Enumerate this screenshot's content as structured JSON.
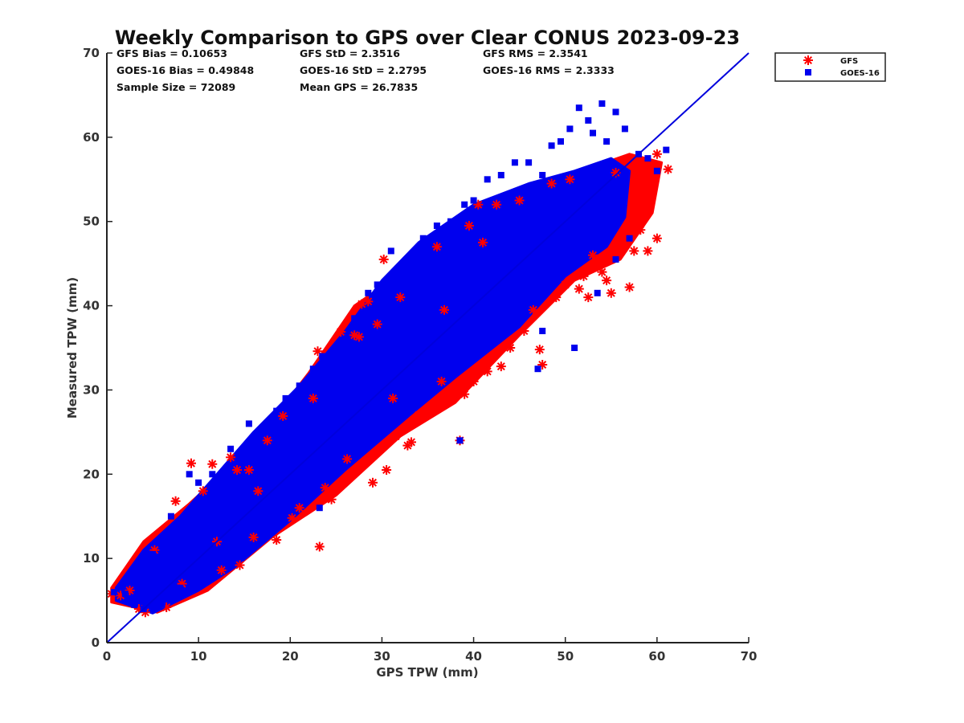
{
  "chart_data": {
    "type": "scatter",
    "title": "Weekly Comparison to GPS over Clear CONUS 2023-09-23",
    "xlabel": "GPS TPW (mm)",
    "ylabel": "Measured TPW (mm)",
    "xlim": [
      0,
      70
    ],
    "ylim": [
      0,
      70
    ],
    "xticks": [
      "0",
      "10",
      "20",
      "30",
      "40",
      "50",
      "60",
      "70"
    ],
    "yticks": [
      "0",
      "10",
      "20",
      "30",
      "40",
      "50",
      "60",
      "70"
    ],
    "reference_line": {
      "name": "1:1 line",
      "from": [
        0,
        0
      ],
      "to": [
        70,
        70
      ],
      "color": "#0000dd"
    },
    "stats": [
      [
        "GFS Bias = 0.10653",
        "GFS StD = 2.3516",
        "GFS RMS = 2.3541"
      ],
      [
        "GOES-16 Bias = 0.49848",
        "GOES-16 StD = 2.2795",
        "GOES-16 RMS = 2.3333"
      ],
      [
        "Sample Size = 72089",
        "Mean GPS = 26.7835",
        ""
      ]
    ],
    "legend_position": "top-right-outside",
    "series": [
      {
        "name": "GFS",
        "marker": "asterisk",
        "color": "#ff0000",
        "points": [
          [
            0.5,
            5.8
          ],
          [
            1.5,
            5.6
          ],
          [
            2.5,
            6.2
          ],
          [
            3.5,
            4.0
          ],
          [
            4.2,
            3.6
          ],
          [
            5.2,
            11.0
          ],
          [
            6.5,
            4.2
          ],
          [
            7.5,
            16.8
          ],
          [
            8.2,
            7.0
          ],
          [
            9.2,
            21.3
          ],
          [
            10.5,
            18.0
          ],
          [
            11.5,
            21.2
          ],
          [
            12.5,
            8.6
          ],
          [
            13.5,
            22.0
          ],
          [
            14.2,
            20.5
          ],
          [
            14.5,
            9.2
          ],
          [
            15.5,
            20.5
          ],
          [
            16.5,
            18.0
          ],
          [
            17.5,
            24.0
          ],
          [
            18.5,
            12.2
          ],
          [
            19.2,
            26.9
          ],
          [
            20.2,
            14.8
          ],
          [
            21.0,
            16.0
          ],
          [
            22.5,
            29.0
          ],
          [
            23.2,
            11.4
          ],
          [
            23.8,
            18.4
          ],
          [
            24.5,
            17.0
          ],
          [
            25.2,
            18.6
          ],
          [
            25.5,
            36.9
          ],
          [
            26.2,
            21.8
          ],
          [
            27.0,
            36.5
          ],
          [
            27.5,
            36.3
          ],
          [
            27.8,
            40.2
          ],
          [
            28.5,
            40.5
          ],
          [
            29.0,
            19.0
          ],
          [
            29.5,
            37.8
          ],
          [
            30.2,
            45.5
          ],
          [
            30.5,
            20.5
          ],
          [
            31.2,
            29.0
          ],
          [
            31.5,
            24.5
          ],
          [
            32.0,
            41.0
          ],
          [
            32.8,
            23.4
          ],
          [
            33.2,
            23.8
          ],
          [
            34.0,
            27.0
          ],
          [
            35.5,
            27.6
          ],
          [
            36.0,
            47.0
          ],
          [
            36.5,
            31.0
          ],
          [
            37.5,
            29.2
          ],
          [
            38.5,
            24.0
          ],
          [
            38.2,
            30.0
          ],
          [
            39.0,
            29.5
          ],
          [
            39.5,
            49.5
          ],
          [
            40.0,
            31.0
          ],
          [
            40.5,
            52.0
          ],
          [
            41.5,
            32.2
          ],
          [
            42.0,
            33.8
          ],
          [
            42.5,
            52.0
          ],
          [
            43.0,
            32.8
          ],
          [
            44.0,
            35.0
          ],
          [
            45.0,
            52.5
          ],
          [
            45.5,
            37.0
          ],
          [
            46.5,
            39.5
          ],
          [
            47.2,
            34.8
          ],
          [
            47.5,
            33.0
          ],
          [
            48.5,
            54.5
          ],
          [
            49.0,
            41.0
          ],
          [
            50.0,
            42.5
          ],
          [
            50.5,
            55.0
          ],
          [
            51.5,
            42.0
          ],
          [
            52.0,
            43.5
          ],
          [
            52.5,
            41.0
          ],
          [
            53.0,
            46.0
          ],
          [
            54.0,
            44.0
          ],
          [
            54.5,
            43.0
          ],
          [
            55.0,
            41.5
          ],
          [
            55.5,
            55.8
          ],
          [
            56.5,
            48.0
          ],
          [
            57.0,
            42.2
          ],
          [
            57.5,
            46.5
          ],
          [
            58.2,
            49.0
          ],
          [
            59.0,
            46.5
          ],
          [
            59.5,
            55.0
          ],
          [
            60.0,
            48.0
          ],
          [
            60.0,
            58.0
          ],
          [
            61.2,
            56.2
          ],
          [
            23.0,
            34.6
          ],
          [
            41.0,
            47.5
          ],
          [
            36.8,
            39.5
          ],
          [
            16.0,
            12.5
          ],
          [
            12.0,
            12.0
          ]
        ]
      },
      {
        "name": "GOES-16",
        "marker": "square",
        "color": "#0000ee",
        "points": [
          [
            0.8,
            6.0
          ],
          [
            2.0,
            5.8
          ],
          [
            3.0,
            4.5
          ],
          [
            4.0,
            4.0
          ],
          [
            5.0,
            10.5
          ],
          [
            6.0,
            4.5
          ],
          [
            7.0,
            15.0
          ],
          [
            8.0,
            6.5
          ],
          [
            9.0,
            20.0
          ],
          [
            10.0,
            19.0
          ],
          [
            11.5,
            20.0
          ],
          [
            12.5,
            10.0
          ],
          [
            13.5,
            23.0
          ],
          [
            15.0,
            19.5
          ],
          [
            15.5,
            26.0
          ],
          [
            17.0,
            21.0
          ],
          [
            18.5,
            27.5
          ],
          [
            19.5,
            29.0
          ],
          [
            21.0,
            30.5
          ],
          [
            22.5,
            32.5
          ],
          [
            23.5,
            34.0
          ],
          [
            23.2,
            16.0
          ],
          [
            24.5,
            33.0
          ],
          [
            25.5,
            35.0
          ],
          [
            27.0,
            38.5
          ],
          [
            28.5,
            41.5
          ],
          [
            29.5,
            42.5
          ],
          [
            31.0,
            46.5
          ],
          [
            32.5,
            44.5
          ],
          [
            34.5,
            48.0
          ],
          [
            36.0,
            49.5
          ],
          [
            37.5,
            50.0
          ],
          [
            38.5,
            24.0
          ],
          [
            39.0,
            52.0
          ],
          [
            40.0,
            52.5
          ],
          [
            41.5,
            55.0
          ],
          [
            43.0,
            55.5
          ],
          [
            44.5,
            57.0
          ],
          [
            46.0,
            57.0
          ],
          [
            47.5,
            55.5
          ],
          [
            48.5,
            59.0
          ],
          [
            49.5,
            59.5
          ],
          [
            50.5,
            61.0
          ],
          [
            51.5,
            63.5
          ],
          [
            52.5,
            62.0
          ],
          [
            53.0,
            60.5
          ],
          [
            54.0,
            64.0
          ],
          [
            54.5,
            59.5
          ],
          [
            55.5,
            63.0
          ],
          [
            56.5,
            55.0
          ],
          [
            57.0,
            48.0
          ],
          [
            58.0,
            58.0
          ],
          [
            59.0,
            57.5
          ],
          [
            60.0,
            56.0
          ],
          [
            61.0,
            58.5
          ],
          [
            47.0,
            32.5
          ],
          [
            47.5,
            37.0
          ],
          [
            51.0,
            35.0
          ],
          [
            55.5,
            45.5
          ],
          [
            53.5,
            41.5
          ],
          [
            56.5,
            61.0
          ],
          [
            44.0,
            53.0
          ],
          [
            38.0,
            45.5
          ],
          [
            34.0,
            44.0
          ],
          [
            30.5,
            35.0
          ],
          [
            26.5,
            27.5
          ],
          [
            21.5,
            28.0
          ],
          [
            14.5,
            14.5
          ]
        ]
      }
    ],
    "clouds": [
      {
        "series": "GFS",
        "polygon": [
          [
            0.5,
            4.8
          ],
          [
            5.5,
            3.6
          ],
          [
            11,
            6.2
          ],
          [
            18,
            12.5
          ],
          [
            25,
            17.5
          ],
          [
            32,
            24.5
          ],
          [
            38,
            28.5
          ],
          [
            45,
            36.5
          ],
          [
            51,
            43.0
          ],
          [
            56,
            45.5
          ],
          [
            59.5,
            51.0
          ],
          [
            60.5,
            57.0
          ],
          [
            57,
            58.0
          ],
          [
            53,
            56.5
          ],
          [
            49,
            55.0
          ],
          [
            43.5,
            52.0
          ],
          [
            37,
            47.5
          ],
          [
            31,
            43.0
          ],
          [
            27,
            40.0
          ],
          [
            22,
            32.0
          ],
          [
            17,
            25.0
          ],
          [
            12,
            19.5
          ],
          [
            9,
            16.5
          ],
          [
            4,
            12.0
          ],
          [
            0.5,
            6.5
          ]
        ]
      },
      {
        "series": "GOES-16",
        "polygon": [
          [
            1,
            5.0
          ],
          [
            5,
            3.5
          ],
          [
            10,
            6.2
          ],
          [
            14,
            9.0
          ],
          [
            20,
            14.5
          ],
          [
            26,
            20.5
          ],
          [
            33,
            27.0
          ],
          [
            38,
            31.5
          ],
          [
            45,
            37.5
          ],
          [
            50,
            43.5
          ],
          [
            54.5,
            47.0
          ],
          [
            56.5,
            50.5
          ],
          [
            57,
            56.0
          ],
          [
            55,
            57.5
          ],
          [
            51,
            56.0
          ],
          [
            46,
            54.5
          ],
          [
            40,
            52.0
          ],
          [
            34,
            47.5
          ],
          [
            30,
            43.0
          ],
          [
            26,
            37.0
          ],
          [
            21,
            30.5
          ],
          [
            16,
            25.0
          ],
          [
            12,
            20.0
          ],
          [
            8,
            15.0
          ],
          [
            4,
            11.0
          ],
          [
            1,
            6.5
          ]
        ]
      }
    ]
  }
}
